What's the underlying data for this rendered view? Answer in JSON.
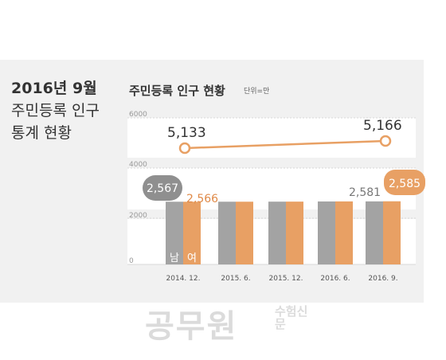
{
  "headline": {
    "line1": "2016년 9월",
    "line2": "주민등록 인구",
    "line3": "통계 현황"
  },
  "chart_data": {
    "type": "bar",
    "title": "주민등록 인구 현황",
    "unit": "단위=만",
    "categories": [
      "2014. 12.",
      "2015. 6.",
      "2015. 12.",
      "2016. 6.",
      "2016. 9."
    ],
    "yticks": [
      "6000",
      "4000",
      "2000",
      "0"
    ],
    "ylim": [
      0,
      6000
    ],
    "series": [
      {
        "name": "남",
        "color": "#a3a3a3",
        "values": [
          2567,
          2568,
          2570,
          2578,
          2581
        ]
      },
      {
        "name": "여",
        "color": "#e8a064",
        "values": [
          2566,
          2568,
          2571,
          2580,
          2585
        ]
      }
    ],
    "total_line": {
      "color": "#e8a064",
      "start_label": "5,133",
      "end_label": "5,166",
      "start_value": 5133,
      "end_value": 5166
    },
    "data_labels": {
      "male_first": "2,567",
      "female_first": "2,566",
      "male_last": "2,581",
      "female_last": "2,585"
    },
    "legend": {
      "male": "남",
      "female": "여"
    }
  },
  "watermark": {
    "main": "공무원",
    "side": "수험신문"
  }
}
